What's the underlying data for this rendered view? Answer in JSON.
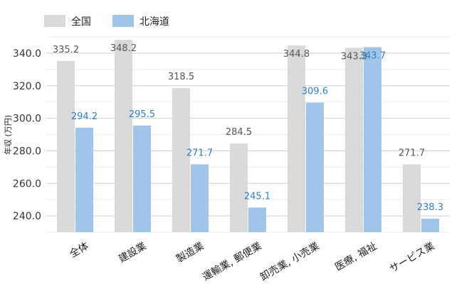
{
  "chart_data": {
    "type": "bar",
    "categories": [
      "全体",
      "建設業",
      "製造業",
      "運輸業, 郵便業",
      "卸売業, 小売業",
      "医療, 福祉",
      "サービス業"
    ],
    "series": [
      {
        "name": "全国",
        "color": "#d9d9d9",
        "label_color": "#555555",
        "values": [
          335.2,
          348.2,
          318.5,
          284.5,
          344.8,
          343.3,
          271.7
        ]
      },
      {
        "name": "北海道",
        "color": "#9fc5e8",
        "label_color": "#2f7fc1",
        "values": [
          294.2,
          295.5,
          271.7,
          245.1,
          309.6,
          343.7,
          238.3
        ]
      }
    ],
    "ylabel": "年収 (万円)",
    "yticks": [
      "240.0",
      "260.0",
      "280.0",
      "300.0",
      "320.0",
      "340.0"
    ],
    "ylim": [
      230,
      350
    ],
    "legend_position": "top-left",
    "grid": true
  }
}
